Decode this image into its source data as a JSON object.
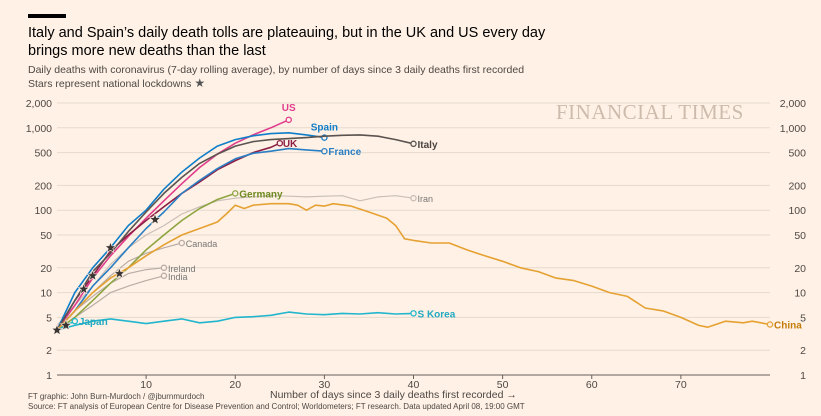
{
  "header": {
    "title": "Italy and Spain’s daily death tolls are plateauing, but in the UK and US every day brings more new deaths than the last",
    "subtitle_line1": "Daily deaths with coronavirus (7-day rolling average), by number of days since 3 daily deaths first recorded",
    "subtitle_line2": "Stars represent national lockdowns",
    "brand": "FINANCIAL TIMES"
  },
  "footer": {
    "credit": "FT graphic: John Burn-Murdoch / @jburnmurdoch",
    "source": "Source: FT analysis of European Centre for Disease Prevention and Control; Worldometers; FT research. Data updated April 08, 19:00 GMT"
  },
  "chart_data": {
    "type": "line",
    "xlabel": "Number of days since 3 daily deaths first recorded →",
    "ylabel": "",
    "xlim": [
      0,
      80
    ],
    "ylim": [
      1,
      2000
    ],
    "yscale": "log",
    "x_ticks": [
      10,
      20,
      30,
      40,
      50,
      60,
      70
    ],
    "y_ticks": [
      1,
      2,
      5,
      10,
      20,
      50,
      100,
      200,
      500,
      1000,
      2000
    ],
    "y_tick_labels": [
      "1",
      "2",
      "5",
      "10",
      "20",
      "50",
      "100",
      "200",
      "500",
      "1,000",
      "2,000"
    ],
    "grid": "horizontal",
    "series": [
      {
        "name": "US",
        "color": "#e03d8c",
        "label_color": "#e03d8c",
        "points": [
          [
            0,
            3.5
          ],
          [
            2,
            7
          ],
          [
            4,
            15
          ],
          [
            6,
            28
          ],
          [
            8,
            48
          ],
          [
            10,
            80
          ],
          [
            12,
            130
          ],
          [
            14,
            210
          ],
          [
            16,
            330
          ],
          [
            18,
            480
          ],
          [
            20,
            650
          ],
          [
            22,
            820
          ],
          [
            24,
            1000
          ],
          [
            26,
            1250
          ]
        ]
      },
      {
        "name": "Spain",
        "color": "#0f7dc9",
        "label_color": "#0f7dc9",
        "points": [
          [
            0,
            3.5
          ],
          [
            2,
            10
          ],
          [
            4,
            20
          ],
          [
            6,
            35
          ],
          [
            8,
            65
          ],
          [
            10,
            100
          ],
          [
            12,
            180
          ],
          [
            14,
            290
          ],
          [
            16,
            430
          ],
          [
            18,
            600
          ],
          [
            20,
            720
          ],
          [
            22,
            800
          ],
          [
            24,
            850
          ],
          [
            26,
            870
          ],
          [
            28,
            820
          ],
          [
            30,
            760
          ]
        ]
      },
      {
        "name": "UK",
        "color": "#8b1f46",
        "label_color": "#8b1f46",
        "points": [
          [
            0,
            3.5
          ],
          [
            2,
            8
          ],
          [
            4,
            16
          ],
          [
            6,
            32
          ],
          [
            8,
            50
          ],
          [
            10,
            75
          ],
          [
            12,
            110
          ],
          [
            14,
            160
          ],
          [
            16,
            220
          ],
          [
            18,
            310
          ],
          [
            20,
            400
          ],
          [
            22,
            500
          ],
          [
            24,
            580
          ],
          [
            25,
            650
          ]
        ]
      },
      {
        "name": "France",
        "color": "#2a7fc4",
        "label_color": "#2a7fc4",
        "points": [
          [
            0,
            3.5
          ],
          [
            2,
            6
          ],
          [
            4,
            12
          ],
          [
            6,
            20
          ],
          [
            8,
            35
          ],
          [
            10,
            60
          ],
          [
            12,
            95
          ],
          [
            14,
            160
          ],
          [
            16,
            230
          ],
          [
            18,
            320
          ],
          [
            20,
            420
          ],
          [
            22,
            490
          ],
          [
            24,
            520
          ],
          [
            26,
            560
          ],
          [
            28,
            540
          ],
          [
            30,
            520
          ]
        ]
      },
      {
        "name": "Italy",
        "color": "#5a5350",
        "label_color": "#4a4542",
        "points": [
          [
            0,
            3.5
          ],
          [
            2,
            8
          ],
          [
            4,
            18
          ],
          [
            6,
            30
          ],
          [
            8,
            55
          ],
          [
            10,
            95
          ],
          [
            12,
            160
          ],
          [
            14,
            250
          ],
          [
            16,
            370
          ],
          [
            18,
            480
          ],
          [
            20,
            600
          ],
          [
            22,
            680
          ],
          [
            24,
            720
          ],
          [
            26,
            740
          ],
          [
            28,
            760
          ],
          [
            30,
            790
          ],
          [
            32,
            810
          ],
          [
            34,
            820
          ],
          [
            36,
            790
          ],
          [
            38,
            720
          ],
          [
            40,
            640
          ]
        ]
      },
      {
        "name": "Germany",
        "color": "#8ea542",
        "label_color": "#6f8a21",
        "points": [
          [
            0,
            3.5
          ],
          [
            2,
            5
          ],
          [
            4,
            8
          ],
          [
            6,
            13
          ],
          [
            8,
            20
          ],
          [
            10,
            33
          ],
          [
            12,
            50
          ],
          [
            14,
            75
          ],
          [
            16,
            105
          ],
          [
            18,
            135
          ],
          [
            20,
            160
          ]
        ]
      },
      {
        "name": "Iran",
        "color": "#c9bfb7",
        "label_color": "#777",
        "points": [
          [
            0,
            4
          ],
          [
            2,
            7
          ],
          [
            4,
            12
          ],
          [
            6,
            22
          ],
          [
            8,
            35
          ],
          [
            10,
            50
          ],
          [
            12,
            65
          ],
          [
            14,
            90
          ],
          [
            16,
            110
          ],
          [
            18,
            130
          ],
          [
            20,
            140
          ],
          [
            22,
            145
          ],
          [
            24,
            150
          ],
          [
            26,
            148
          ],
          [
            28,
            145
          ],
          [
            30,
            148
          ],
          [
            32,
            150
          ],
          [
            34,
            130
          ],
          [
            36,
            145
          ],
          [
            38,
            150
          ],
          [
            40,
            140
          ]
        ]
      },
      {
        "name": "China",
        "color": "#e5a132",
        "label_color": "#c47d0a",
        "points": [
          [
            0,
            3.5
          ],
          [
            2,
            6
          ],
          [
            4,
            10
          ],
          [
            6,
            15
          ],
          [
            8,
            20
          ],
          [
            10,
            28
          ],
          [
            12,
            38
          ],
          [
            14,
            50
          ],
          [
            16,
            60
          ],
          [
            18,
            72
          ],
          [
            19,
            90
          ],
          [
            20,
            115
          ],
          [
            21,
            105
          ],
          [
            22,
            115
          ],
          [
            24,
            120
          ],
          [
            26,
            120
          ],
          [
            27,
            115
          ],
          [
            28,
            100
          ],
          [
            29,
            115
          ],
          [
            30,
            112
          ],
          [
            31,
            120
          ],
          [
            33,
            112
          ],
          [
            35,
            95
          ],
          [
            37,
            80
          ],
          [
            38,
            65
          ],
          [
            39,
            45
          ],
          [
            40,
            43
          ],
          [
            42,
            40
          ],
          [
            44,
            40
          ],
          [
            46,
            33
          ],
          [
            48,
            28
          ],
          [
            50,
            24
          ],
          [
            52,
            20
          ],
          [
            54,
            18
          ],
          [
            56,
            15
          ],
          [
            58,
            14
          ],
          [
            60,
            12
          ],
          [
            62,
            10
          ],
          [
            64,
            9
          ],
          [
            66,
            6.5
          ],
          [
            68,
            6
          ],
          [
            70,
            5
          ],
          [
            72,
            4
          ],
          [
            73,
            3.8
          ],
          [
            75,
            4.5
          ],
          [
            77,
            4.3
          ],
          [
            78,
            4.5
          ],
          [
            80,
            4.1
          ]
        ]
      },
      {
        "name": "S Korea",
        "color": "#21b6cd",
        "label_color": "#21a9c0",
        "points": [
          [
            0,
            3.5
          ],
          [
            2,
            4
          ],
          [
            4,
            4.5
          ],
          [
            6,
            4.8
          ],
          [
            8,
            4.5
          ],
          [
            10,
            4.2
          ],
          [
            12,
            4.5
          ],
          [
            14,
            4.8
          ],
          [
            16,
            4.3
          ],
          [
            18,
            4.5
          ],
          [
            20,
            5
          ],
          [
            22,
            5.1
          ],
          [
            24,
            5.3
          ],
          [
            26,
            5.8
          ],
          [
            28,
            5.5
          ],
          [
            30,
            5.4
          ],
          [
            32,
            5.6
          ],
          [
            34,
            5.5
          ],
          [
            36,
            5.7
          ],
          [
            38,
            5.5
          ],
          [
            40,
            5.6
          ]
        ]
      },
      {
        "name": "Japan",
        "color": "#21b6cd",
        "label_color": "#21a9c0",
        "points": [
          [
            0,
            3.5
          ],
          [
            1,
            4
          ],
          [
            2,
            4.5
          ]
        ]
      },
      {
        "name": "Canada",
        "color": "#b8ada6",
        "label_color": "#777",
        "points": [
          [
            0,
            3.5
          ],
          [
            2,
            6
          ],
          [
            4,
            10
          ],
          [
            6,
            16
          ],
          [
            8,
            24
          ],
          [
            10,
            30
          ],
          [
            12,
            35
          ],
          [
            14,
            40
          ]
        ]
      },
      {
        "name": "Ireland",
        "color": "#b8ada6",
        "label_color": "#777",
        "points": [
          [
            0,
            3.5
          ],
          [
            2,
            6
          ],
          [
            4,
            9
          ],
          [
            6,
            13
          ],
          [
            8,
            17
          ],
          [
            10,
            19
          ],
          [
            12,
            20
          ]
        ]
      },
      {
        "name": "India",
        "color": "#b8ada6",
        "label_color": "#777",
        "points": [
          [
            0,
            3.5
          ],
          [
            2,
            5
          ],
          [
            4,
            7
          ],
          [
            6,
            10
          ],
          [
            8,
            12
          ],
          [
            10,
            14
          ],
          [
            12,
            16
          ]
        ]
      }
    ],
    "lockdowns": [
      [
        0,
        3.5
      ],
      [
        1,
        4
      ],
      [
        3,
        11
      ],
      [
        4,
        16
      ],
      [
        6,
        35
      ],
      [
        7,
        17
      ],
      [
        11,
        77
      ]
    ],
    "annotations": []
  }
}
